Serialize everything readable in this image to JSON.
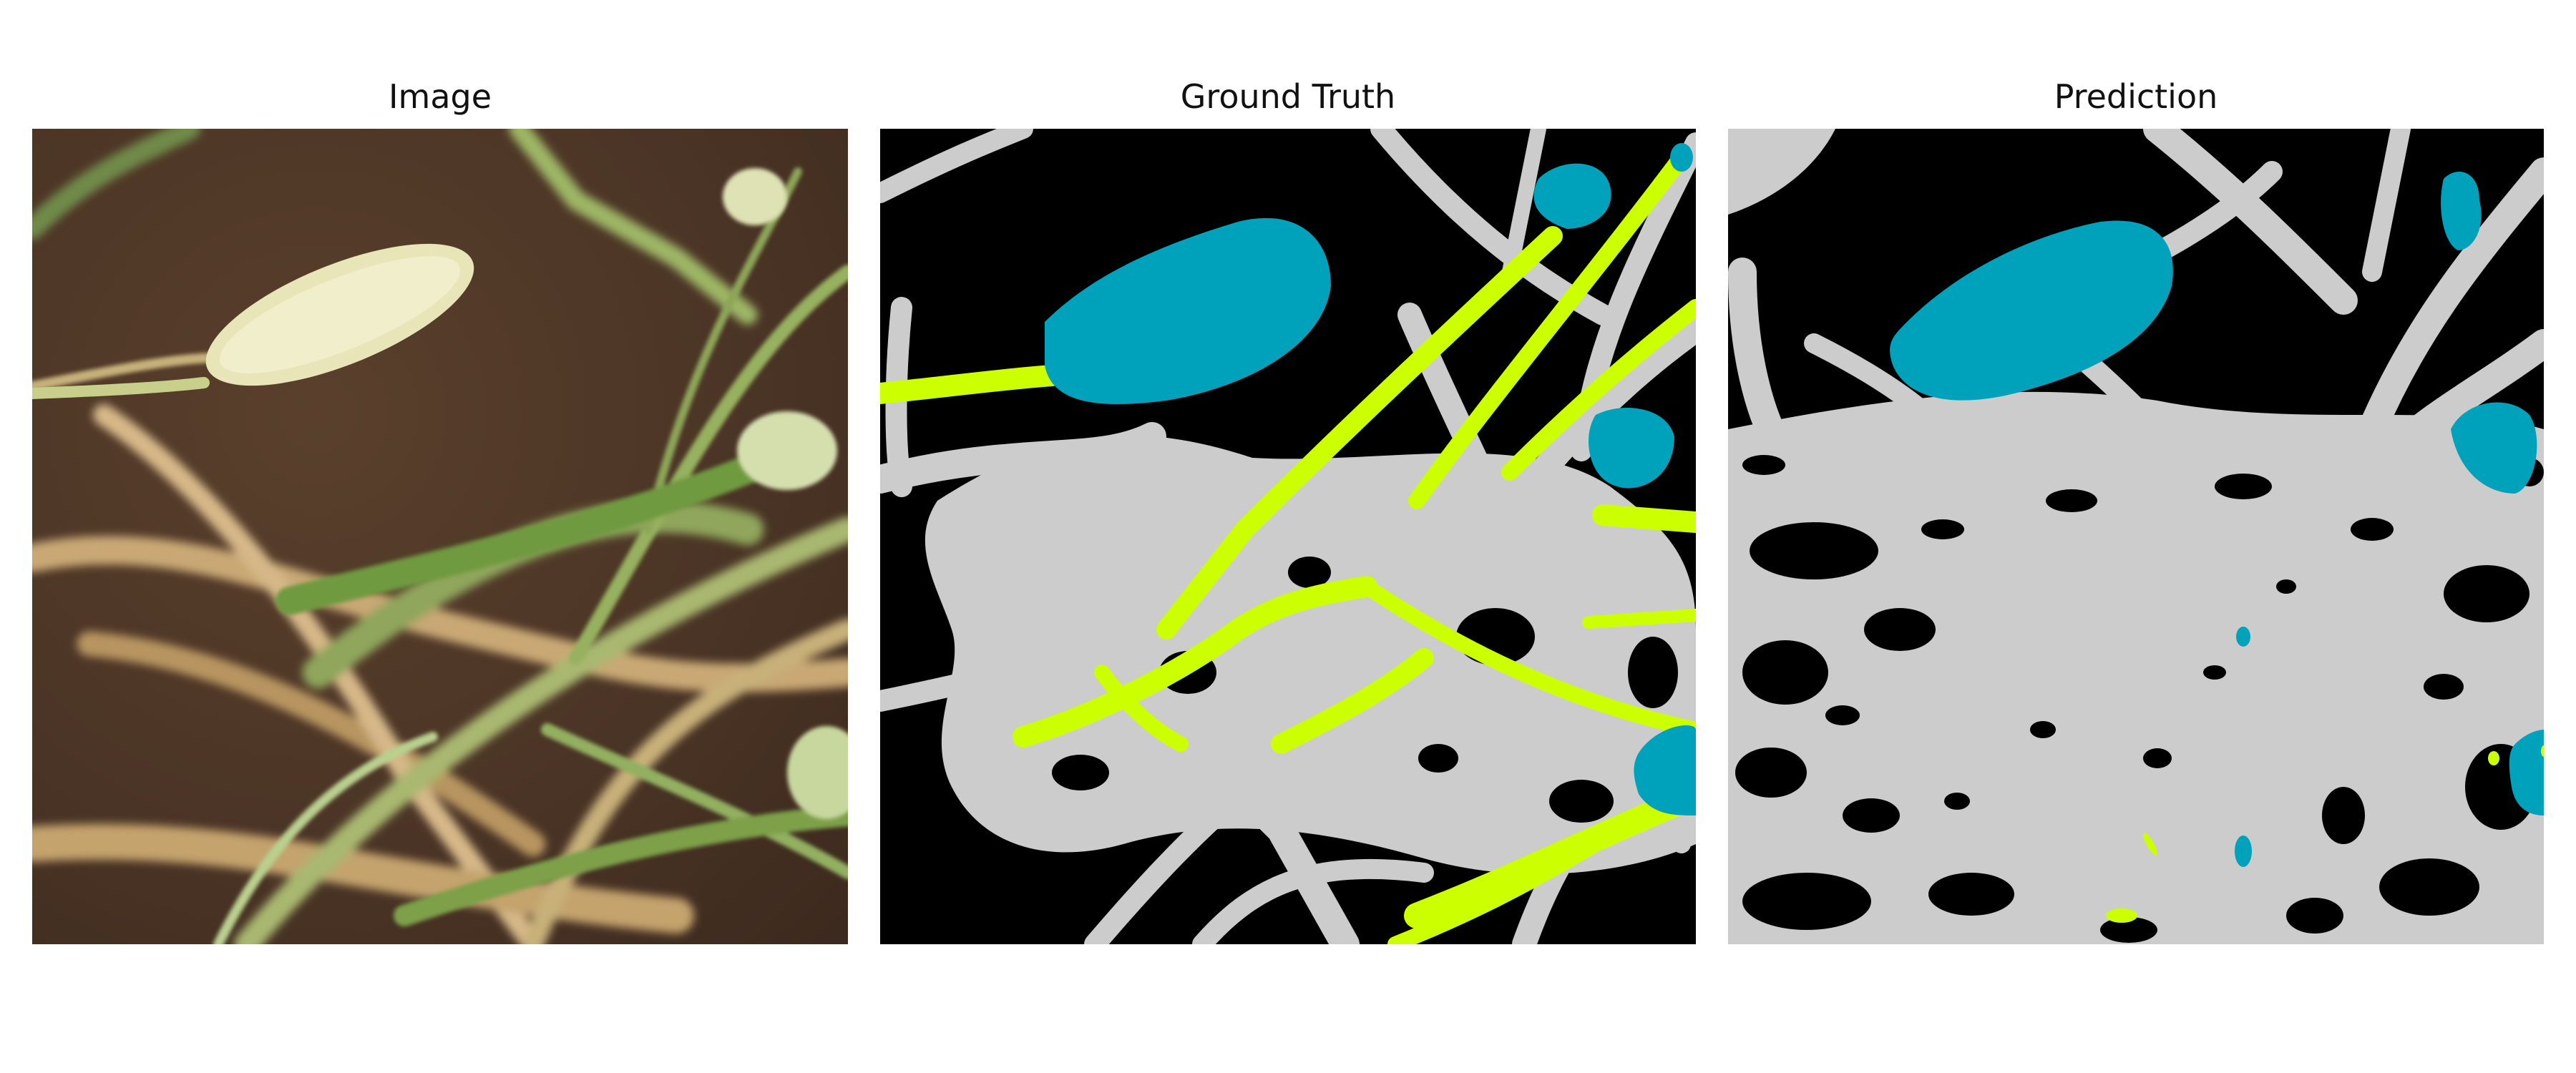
{
  "figure": {
    "panels": [
      {
        "title": "Image"
      },
      {
        "title": "Ground Truth"
      },
      {
        "title": "Prediction"
      }
    ]
  },
  "mask_colors": {
    "background": "#000000",
    "class_gray": "#cccccc",
    "class_teal": "#00a2bb",
    "class_lime": "#ccff00"
  },
  "photo_colors": {
    "soil": "#4a3425",
    "grass_green": "#8aa05a",
    "dry_straw": "#c9a874",
    "flower_head": "#e8e6b8"
  }
}
